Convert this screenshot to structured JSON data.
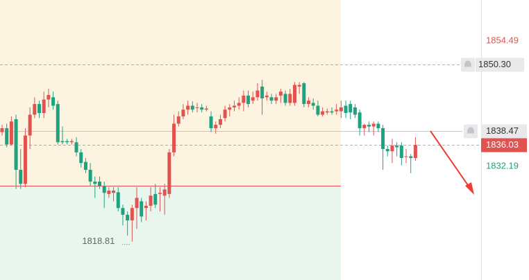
{
  "chart_data": {
    "type": "candlestick",
    "up_color": "#e0534f",
    "down_color": "#1fa27f",
    "ylim": [
      1812.0,
      1861.8
    ],
    "yticks": [
      1854.49,
      1832.19
    ],
    "ytick_colors": [
      "#e0534f",
      "#1fa27f"
    ],
    "price_lines": [
      {
        "value": 1850.3,
        "label": "1850.30",
        "kind": "alert"
      },
      {
        "value": 1838.47,
        "kind": "alert"
      },
      {
        "value": 1836.03,
        "kind": "current"
      }
    ],
    "open": [
      1838.3,
      1839.0,
      1836.1,
      1840.6,
      1831.6,
      1829.1,
      1837.7,
      1841.4,
      1843.3,
      1841.7,
      1844.1,
      1844.5,
      1843.3,
      1836.7,
      1836.7,
      1836.5,
      1836.5,
      1834.7,
      1833.0,
      1831.6,
      1829.5,
      1829.5,
      1828.7,
      1827.3,
      1827.5,
      1827.6,
      1824.8,
      1823.6,
      1822.6,
      1824.8,
      1826.0,
      1824.8,
      1825.2,
      1827.3,
      1827.3,
      1827.0,
      1827.3,
      1834.7,
      1839.8,
      1841.1,
      1842.3,
      1843.0,
      1842.7,
      1842.7,
      1842.3,
      1841.1,
      1839.0,
      1839.6,
      1840.8,
      1842.3,
      1842.7,
      1843.0,
      1843.5,
      1844.8,
      1843.9,
      1844.5,
      1846.4,
      1844.5,
      1844.5,
      1843.9,
      1844.8,
      1845.1,
      1843.5,
      1843.5,
      1846.4,
      1847.0,
      1843.3,
      1843.5,
      1843.0,
      1841.4,
      1841.8,
      1842.0,
      1842.0,
      1842.0,
      1843.0,
      1843.3,
      1842.7,
      1841.8,
      1839.0,
      1839.6,
      1839.3,
      1839.8,
      1839.0,
      1835.3,
      1834.9,
      1835.9,
      1835.9,
      1834.0,
      1834.0,
      1833.7
    ],
    "high": [
      1839.6,
      1839.8,
      1841.1,
      1841.4,
      1835.3,
      1839.0,
      1842.7,
      1844.5,
      1843.9,
      1845.5,
      1846.0,
      1845.5,
      1843.9,
      1839.3,
      1837.1,
      1837.1,
      1837.4,
      1835.3,
      1833.7,
      1832.8,
      1830.4,
      1830.4,
      1829.5,
      1828.5,
      1828.5,
      1828.5,
      1825.4,
      1824.2,
      1825.4,
      1828.5,
      1826.6,
      1826.0,
      1828.5,
      1829.1,
      1828.5,
      1829.1,
      1835.3,
      1841.4,
      1842.0,
      1843.3,
      1843.9,
      1843.8,
      1843.5,
      1843.3,
      1843.0,
      1842.0,
      1840.2,
      1841.4,
      1843.0,
      1843.3,
      1843.9,
      1844.5,
      1845.7,
      1845.7,
      1845.5,
      1847.0,
      1847.6,
      1845.5,
      1845.1,
      1845.1,
      1846.0,
      1845.7,
      1846.0,
      1847.2,
      1847.2,
      1847.2,
      1844.5,
      1844.3,
      1843.9,
      1842.7,
      1842.5,
      1842.7,
      1843.3,
      1843.9,
      1843.9,
      1843.9,
      1843.3,
      1842.3,
      1839.8,
      1840.2,
      1840.2,
      1840.2,
      1839.6,
      1835.9,
      1837.1,
      1836.5,
      1836.5,
      1835.3,
      1834.4,
      1837.4
    ],
    "low": [
      1837.7,
      1835.6,
      1835.9,
      1828.2,
      1828.2,
      1828.5,
      1835.3,
      1840.8,
      1840.8,
      1840.8,
      1842.7,
      1842.3,
      1836.1,
      1836.1,
      1836.1,
      1836.1,
      1834.0,
      1832.0,
      1831.0,
      1828.7,
      1826.6,
      1828.2,
      1824.8,
      1826.6,
      1826.0,
      1824.2,
      1821.7,
      1819.9,
      1818.81,
      1821.1,
      1822.3,
      1822.6,
      1824.2,
      1824.8,
      1824.2,
      1823.6,
      1826.6,
      1834.0,
      1839.3,
      1840.6,
      1841.4,
      1841.8,
      1841.8,
      1841.8,
      1842.0,
      1838.3,
      1838.0,
      1839.0,
      1840.2,
      1841.1,
      1842.0,
      1842.3,
      1842.0,
      1842.7,
      1843.3,
      1843.9,
      1841.4,
      1843.9,
      1843.3,
      1843.3,
      1843.5,
      1843.0,
      1843.0,
      1843.0,
      1845.1,
      1842.7,
      1842.7,
      1842.3,
      1841.1,
      1841.1,
      1841.4,
      1841.4,
      1841.4,
      1840.8,
      1840.8,
      1840.6,
      1840.8,
      1837.7,
      1837.7,
      1838.3,
      1837.7,
      1838.3,
      1831.6,
      1834.0,
      1832.8,
      1834.0,
      1832.4,
      1832.8,
      1831.0,
      1833.2
    ],
    "close": [
      1839.0,
      1836.1,
      1840.2,
      1831.6,
      1829.1,
      1837.7,
      1841.4,
      1843.3,
      1841.7,
      1844.1,
      1844.9,
      1843.0,
      1836.5,
      1836.5,
      1836.5,
      1836.7,
      1834.7,
      1832.8,
      1831.6,
      1829.5,
      1829.1,
      1828.7,
      1827.5,
      1827.9,
      1827.9,
      1824.8,
      1823.6,
      1822.6,
      1824.8,
      1826.6,
      1823.3,
      1825.2,
      1827.0,
      1825.4,
      1827.5,
      1828.1,
      1834.7,
      1839.8,
      1841.1,
      1842.3,
      1843.0,
      1842.3,
      1842.7,
      1842.3,
      1842.5,
      1839.0,
      1839.6,
      1840.6,
      1842.3,
      1842.7,
      1843.0,
      1843.5,
      1844.8,
      1843.3,
      1844.5,
      1845.7,
      1844.3,
      1844.8,
      1843.9,
      1844.5,
      1845.5,
      1843.5,
      1845.1,
      1846.7,
      1846.7,
      1843.3,
      1843.9,
      1843.0,
      1841.4,
      1842.0,
      1842.0,
      1841.8,
      1842.3,
      1842.7,
      1841.7,
      1841.8,
      1841.4,
      1839.0,
      1839.6,
      1839.3,
      1839.8,
      1839.0,
      1835.3,
      1834.9,
      1835.9,
      1835.6,
      1833.7,
      1834.0,
      1833.7,
      1836.03
    ]
  }
}
